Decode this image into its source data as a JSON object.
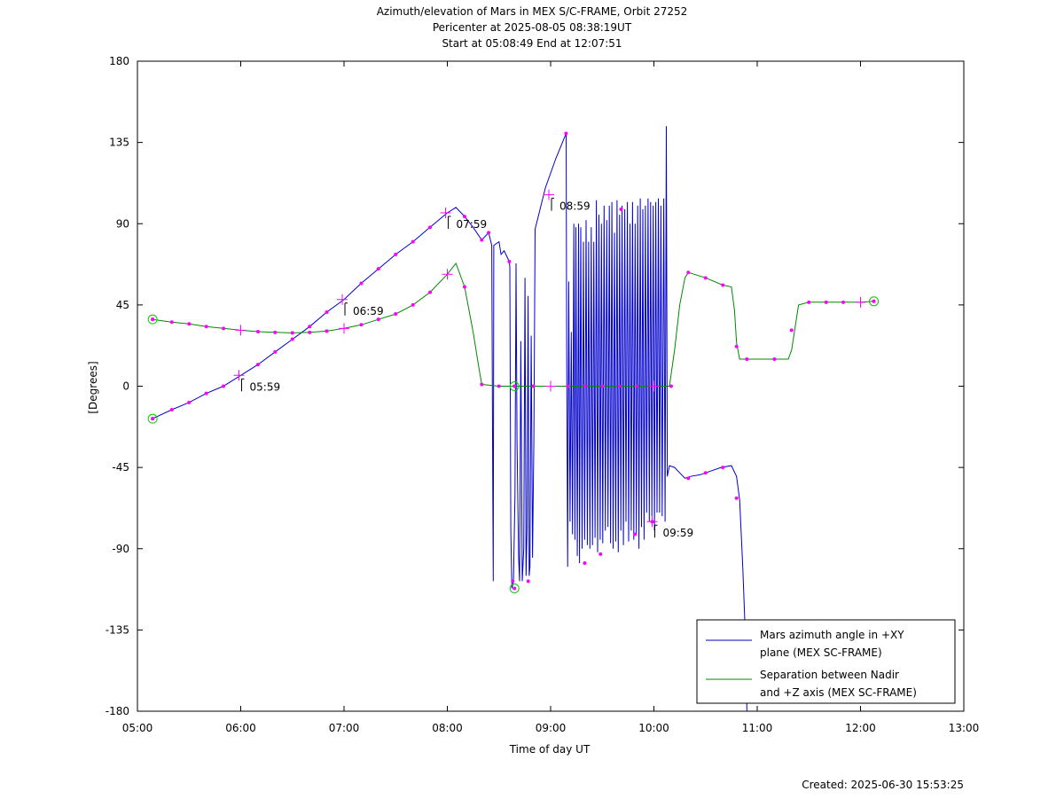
{
  "chart_data": {
    "type": "line",
    "title": "Azimuth/elevation of Mars in MEX S/C-FRAME,  Orbit 27252",
    "subtitle": "Pericenter at 2025-08-05 08:38:19UT",
    "subtitle2": "Start at 05:08:49 End at 12:07:51",
    "xlabel": "Time of day UT",
    "ylabel": "[Degrees]",
    "footer": "Created: 2025-06-30 15:53:25",
    "xlim": [
      5,
      13
    ],
    "ylim": [
      -180,
      180
    ],
    "x_unit": "hours",
    "xticks": [
      5,
      6,
      7,
      8,
      9,
      10,
      11,
      12,
      13
    ],
    "xtick_labels": [
      "05:00",
      "06:00",
      "07:00",
      "08:00",
      "09:00",
      "10:00",
      "11:00",
      "12:00",
      "13:00"
    ],
    "yticks": [
      180,
      135,
      90,
      45,
      0,
      -45,
      -90,
      -135,
      -180
    ],
    "ytick_labels": [
      "180",
      "135",
      "90",
      "45",
      "0",
      "-45",
      "-90",
      "-135",
      "-180"
    ],
    "legend_position": "bottom-right",
    "series": [
      {
        "name": "Mars azimuth angle in +XY plane (MEX SC-FRAME)",
        "legend_lines": [
          "Mars azimuth angle in +XY",
          "plane (MEX SC-FRAME)"
        ],
        "color": "#0000cc",
        "points": [
          [
            5.147,
            -18
          ],
          [
            5.333,
            -13
          ],
          [
            5.5,
            -9
          ],
          [
            5.667,
            -4
          ],
          [
            5.833,
            0
          ],
          [
            6.0,
            6
          ],
          [
            6.167,
            12
          ],
          [
            6.333,
            19
          ],
          [
            6.5,
            26
          ],
          [
            6.667,
            33
          ],
          [
            6.833,
            41
          ],
          [
            7.0,
            48
          ],
          [
            7.167,
            57
          ],
          [
            7.333,
            65
          ],
          [
            7.5,
            73
          ],
          [
            7.667,
            80
          ],
          [
            7.833,
            88
          ],
          [
            8.0,
            96
          ],
          [
            8.083,
            99
          ],
          [
            8.167,
            94
          ],
          [
            8.25,
            88
          ],
          [
            8.333,
            81
          ],
          [
            8.4,
            85
          ],
          [
            8.43,
            78
          ],
          [
            8.44,
            -60
          ],
          [
            8.445,
            -108
          ],
          [
            8.45,
            78
          ],
          [
            8.5,
            80
          ],
          [
            8.52,
            73
          ],
          [
            8.55,
            75
          ],
          [
            8.6,
            69
          ],
          [
            8.605,
            66
          ],
          [
            8.615,
            -80
          ],
          [
            8.625,
            -112
          ],
          [
            8.64,
            -108
          ],
          [
            8.655,
            -60
          ],
          [
            8.665,
            68
          ],
          [
            8.675,
            -30
          ],
          [
            8.69,
            -95
          ],
          [
            8.7,
            -108
          ],
          [
            8.712,
            25
          ],
          [
            8.725,
            -108
          ],
          [
            8.74,
            -90
          ],
          [
            8.752,
            60
          ],
          [
            8.762,
            -105
          ],
          [
            8.772,
            -80
          ],
          [
            8.782,
            50
          ],
          [
            8.792,
            -105
          ],
          [
            8.8,
            -100
          ],
          [
            8.812,
            28
          ],
          [
            8.825,
            -95
          ],
          [
            8.838,
            -30
          ],
          [
            8.85,
            87
          ],
          [
            8.95,
            110
          ],
          [
            9.05,
            126
          ],
          [
            9.15,
            140
          ],
          [
            9.155,
            18
          ],
          [
            9.165,
            -100
          ],
          [
            9.175,
            58
          ],
          [
            9.188,
            -75
          ],
          [
            9.2,
            30
          ],
          [
            9.212,
            -82
          ],
          [
            9.225,
            90
          ],
          [
            9.235,
            -85
          ],
          [
            9.245,
            88
          ],
          [
            9.258,
            -94
          ],
          [
            9.27,
            90
          ],
          [
            9.28,
            -98
          ],
          [
            9.292,
            88
          ],
          [
            9.305,
            -90
          ],
          [
            9.318,
            80
          ],
          [
            9.33,
            -85
          ],
          [
            9.343,
            92
          ],
          [
            9.355,
            -88
          ],
          [
            9.368,
            80
          ],
          [
            9.38,
            -90
          ],
          [
            9.393,
            88
          ],
          [
            9.405,
            -88
          ],
          [
            9.418,
            80
          ],
          [
            9.43,
            -84
          ],
          [
            9.443,
            103
          ],
          [
            9.455,
            -92
          ],
          [
            9.468,
            95
          ],
          [
            9.48,
            -85
          ],
          [
            9.492,
            90
          ],
          [
            9.505,
            -87
          ],
          [
            9.518,
            100
          ],
          [
            9.53,
            -80
          ],
          [
            9.543,
            92
          ],
          [
            9.555,
            -78
          ],
          [
            9.568,
            100
          ],
          [
            9.58,
            -87
          ],
          [
            9.593,
            102
          ],
          [
            9.605,
            -90
          ],
          [
            9.618,
            85
          ],
          [
            9.63,
            -86
          ],
          [
            9.643,
            103
          ],
          [
            9.655,
            -92
          ],
          [
            9.668,
            95
          ],
          [
            9.68,
            -80
          ],
          [
            9.692,
            100
          ],
          [
            9.705,
            -88
          ],
          [
            9.718,
            98
          ],
          [
            9.73,
            -75
          ],
          [
            9.743,
            102
          ],
          [
            9.755,
            -86
          ],
          [
            9.768,
            90
          ],
          [
            9.78,
            -80
          ],
          [
            9.793,
            102
          ],
          [
            9.805,
            -85
          ],
          [
            9.818,
            90
          ],
          [
            9.83,
            -82
          ],
          [
            9.843,
            100
          ],
          [
            9.855,
            -90
          ],
          [
            9.868,
            104
          ],
          [
            9.88,
            -78
          ],
          [
            9.893,
            98
          ],
          [
            9.905,
            -85
          ],
          [
            9.918,
            100
          ],
          [
            9.93,
            -70
          ],
          [
            9.943,
            104
          ],
          [
            9.955,
            -75
          ],
          [
            9.968,
            102
          ],
          [
            9.98,
            -72
          ],
          [
            9.993,
            100
          ],
          [
            10.005,
            -80
          ],
          [
            10.018,
            102
          ],
          [
            10.03,
            -70
          ],
          [
            10.043,
            104
          ],
          [
            10.055,
            -70
          ],
          [
            10.068,
            100
          ],
          [
            10.08,
            -72
          ],
          [
            10.095,
            104
          ],
          [
            10.108,
            -75
          ],
          [
            10.12,
            144
          ],
          [
            10.13,
            -50
          ],
          [
            10.15,
            -44
          ],
          [
            10.2,
            -45
          ],
          [
            10.25,
            -48
          ],
          [
            10.3,
            -51
          ],
          [
            10.35,
            -50
          ],
          [
            10.45,
            -49
          ],
          [
            10.55,
            -47
          ],
          [
            10.65,
            -45
          ],
          [
            10.75,
            -44
          ],
          [
            10.8,
            -50
          ],
          [
            10.83,
            -63
          ],
          [
            10.86,
            -100
          ],
          [
            10.88,
            -130
          ],
          [
            10.9,
            -180
          ]
        ]
      },
      {
        "name": "Separation between Nadir and +Z axis (MEX SC-FRAME)",
        "legend_lines": [
          "Separation between Nadir",
          "and +Z axis (MEX SC-FRAME)"
        ],
        "color": "#008800",
        "points": [
          [
            5.147,
            37
          ],
          [
            5.333,
            35.5
          ],
          [
            5.5,
            34.5
          ],
          [
            5.667,
            33
          ],
          [
            5.833,
            32
          ],
          [
            6.0,
            31
          ],
          [
            6.167,
            30.2
          ],
          [
            6.333,
            29.8
          ],
          [
            6.5,
            29.5
          ],
          [
            6.667,
            29.8
          ],
          [
            6.833,
            30.5
          ],
          [
            7.0,
            32
          ],
          [
            7.167,
            34
          ],
          [
            7.333,
            37
          ],
          [
            7.5,
            40
          ],
          [
            7.667,
            45
          ],
          [
            7.833,
            52
          ],
          [
            8.0,
            62
          ],
          [
            8.083,
            68
          ],
          [
            8.167,
            55
          ],
          [
            8.25,
            30
          ],
          [
            8.3,
            12
          ],
          [
            8.333,
            1
          ],
          [
            8.5,
            0
          ],
          [
            8.667,
            0
          ],
          [
            8.833,
            0
          ],
          [
            9.0,
            0
          ],
          [
            9.167,
            0
          ],
          [
            9.333,
            0
          ],
          [
            9.5,
            0
          ],
          [
            9.667,
            0
          ],
          [
            9.833,
            0
          ],
          [
            10.0,
            0
          ],
          [
            10.15,
            0
          ],
          [
            10.2,
            20
          ],
          [
            10.25,
            45
          ],
          [
            10.3,
            60
          ],
          [
            10.333,
            63
          ],
          [
            10.5,
            60
          ],
          [
            10.667,
            56
          ],
          [
            10.75,
            55
          ],
          [
            10.78,
            42
          ],
          [
            10.8,
            24
          ],
          [
            10.83,
            15
          ],
          [
            10.9,
            15
          ],
          [
            11.0,
            15
          ],
          [
            11.167,
            15
          ],
          [
            11.3,
            15
          ],
          [
            11.333,
            20
          ],
          [
            11.4,
            45
          ],
          [
            11.5,
            46.5
          ],
          [
            11.667,
            46.5
          ],
          [
            11.833,
            46.5
          ],
          [
            12.0,
            46.5
          ],
          [
            12.129,
            47
          ]
        ]
      }
    ],
    "markers_color": "#ff00ff",
    "markers": [
      {
        "series": 0,
        "x": [
          5.147,
          5.333,
          5.5,
          5.667,
          5.833,
          6.167,
          6.333,
          6.5,
          6.667,
          6.833,
          7.167,
          7.333,
          7.5,
          7.667,
          7.833,
          8.167,
          8.333,
          8.4,
          8.6,
          8.633,
          8.783,
          9.15,
          9.33,
          9.483,
          9.683,
          9.817,
          9.983,
          10.333,
          10.5,
          10.667,
          10.8
        ],
        "y": [
          -18,
          -13,
          -9,
          -4,
          0,
          12,
          19,
          26,
          33,
          41,
          57,
          65,
          73,
          80,
          88,
          94,
          81,
          85,
          69,
          -108,
          -108,
          140,
          -98,
          -93,
          98,
          -82,
          -75,
          -51,
          -48,
          -45,
          -62
        ]
      },
      {
        "series": 1,
        "x": [
          5.147,
          5.333,
          5.5,
          5.667,
          5.833,
          6.167,
          6.333,
          6.5,
          6.667,
          6.833,
          7.167,
          7.333,
          7.5,
          7.667,
          7.833,
          8.167,
          8.333,
          8.5,
          8.833,
          9.167,
          9.333,
          9.5,
          9.667,
          9.833,
          10.167,
          10.333,
          10.5,
          10.667,
          10.8,
          10.9,
          11.167,
          11.333,
          11.5,
          11.667,
          11.833,
          12.129
        ],
        "y": [
          37,
          35.5,
          34.5,
          33,
          32,
          30.2,
          29.8,
          29.5,
          29.8,
          30.5,
          34,
          37,
          40,
          45,
          52,
          55,
          1,
          0,
          0,
          0,
          0,
          0,
          0,
          0,
          0,
          63,
          60,
          56,
          22,
          15,
          15,
          31,
          46.5,
          46.5,
          46.5,
          47
        ]
      }
    ],
    "hour_marks": [
      {
        "x": 5.983,
        "y": 6,
        "label": "05:59"
      },
      {
        "x": 6.983,
        "y": 48,
        "label": "06:59"
      },
      {
        "x": 7.983,
        "y": 96,
        "label": "07:59"
      },
      {
        "x": 8.983,
        "y": 106,
        "label": "08:59"
      },
      {
        "x": 9.983,
        "y": -75,
        "label": "09:59"
      }
    ],
    "cross_marks": [
      {
        "x": 6.0,
        "y": 31
      },
      {
        "x": 7.0,
        "y": 32
      },
      {
        "x": 8.0,
        "y": 62
      },
      {
        "x": 9.0,
        "y": 0
      },
      {
        "x": 10.0,
        "y": 0
      },
      {
        "x": 12.0,
        "y": 46.5
      }
    ],
    "circle_marks": [
      {
        "x": 5.147,
        "y": -18
      },
      {
        "x": 5.147,
        "y": 37
      },
      {
        "x": 8.65,
        "y": -112
      },
      {
        "x": 8.65,
        "y": 0
      },
      {
        "x": 12.129,
        "y": 47
      }
    ]
  }
}
